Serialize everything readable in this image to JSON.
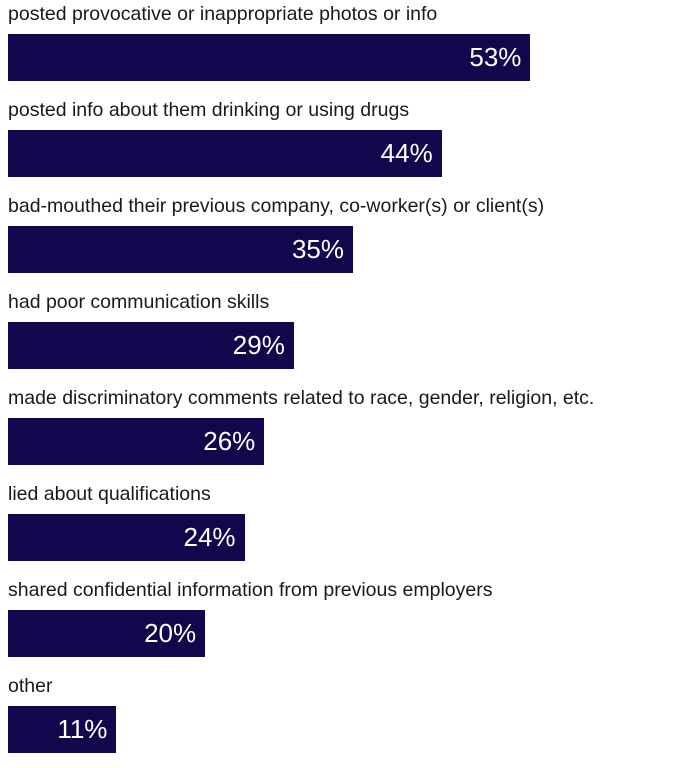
{
  "chart_data": {
    "type": "bar",
    "orientation": "horizontal",
    "categories": [
      "posted provocative or inappropriate photos or info",
      "posted info about them drinking or using drugs",
      "bad-mouthed their previous company, co-worker(s) or client(s)",
      "had poor communication skills",
      "made discriminatory comments related to race, gender, religion, etc.",
      "lied about qualifications",
      "shared confidential information from previous employers",
      "other"
    ],
    "values": [
      53,
      44,
      35,
      29,
      26,
      24,
      20,
      11
    ],
    "value_labels": [
      "53%",
      "44%",
      "35%",
      "29%",
      "26%",
      "24%",
      "20%",
      "11%"
    ],
    "unit": "%",
    "xlim": [
      0,
      70
    ],
    "bar_color": "#12074d",
    "label_color": "#1a1a1a",
    "value_label_color": "#ffffff",
    "grid": false,
    "legend": "none"
  }
}
